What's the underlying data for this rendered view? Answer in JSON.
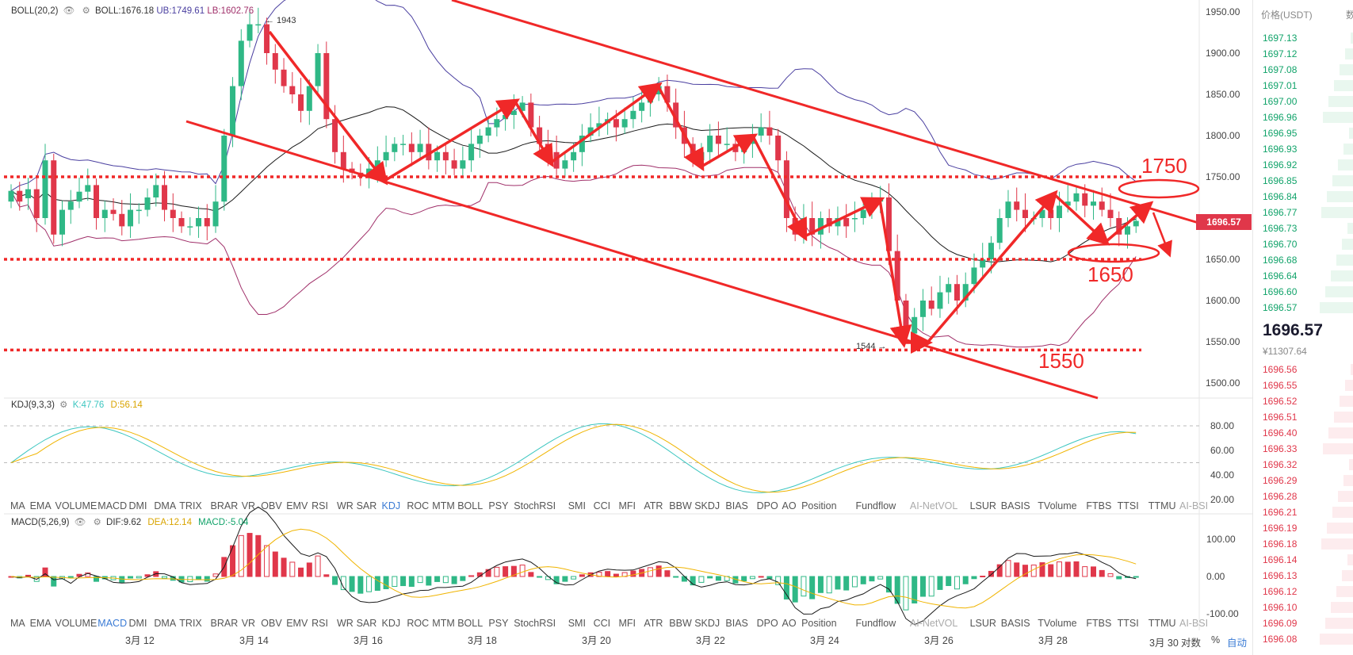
{
  "chart_data": {
    "type": "candlestick",
    "x_ticks": [
      "3月 12",
      "3月 14",
      "3月 16",
      "3月 18",
      "3月 20",
      "3月 22",
      "3月 24",
      "3月 26",
      "3月 28",
      "3月 30"
    ],
    "y_ticks": [
      "1950.00",
      "1900.00",
      "1850.00",
      "1800.00",
      "1750.00",
      "1700.00",
      "1650.00",
      "1600.00",
      "1550.00",
      "1500.00"
    ],
    "ylim": [
      1480,
      1960
    ],
    "last_price": "1696.57",
    "high_marker": "← 1943",
    "low_marker": "1544 →",
    "candles": [
      [
        1720,
        1733
      ],
      [
        1733,
        1720
      ],
      [
        1724,
        1735
      ],
      [
        1735,
        1700
      ],
      [
        1700,
        1770
      ],
      [
        1770,
        1680
      ],
      [
        1680,
        1710
      ],
      [
        1710,
        1720
      ],
      [
        1720,
        1732
      ],
      [
        1732,
        1740
      ],
      [
        1740,
        1700
      ],
      [
        1700,
        1710
      ],
      [
        1710,
        1705
      ],
      [
        1705,
        1690
      ],
      [
        1690,
        1710
      ],
      [
        1710,
        1710
      ],
      [
        1710,
        1725
      ],
      [
        1725,
        1740
      ],
      [
        1740,
        1710
      ],
      [
        1710,
        1700
      ],
      [
        1700,
        1690
      ],
      [
        1690,
        1690
      ],
      [
        1690,
        1700
      ],
      [
        1700,
        1690
      ],
      [
        1690,
        1720
      ],
      [
        1720,
        1800
      ],
      [
        1800,
        1860
      ],
      [
        1860,
        1915
      ],
      [
        1915,
        1935
      ],
      [
        1935,
        1935
      ],
      [
        1935,
        1900
      ],
      [
        1900,
        1880
      ],
      [
        1880,
        1860
      ],
      [
        1860,
        1850
      ],
      [
        1850,
        1830
      ],
      [
        1830,
        1860
      ],
      [
        1860,
        1900
      ],
      [
        1900,
        1820
      ],
      [
        1820,
        1780
      ],
      [
        1780,
        1760
      ],
      [
        1760,
        1755
      ],
      [
        1755,
        1750
      ],
      [
        1750,
        1760
      ],
      [
        1760,
        1770
      ],
      [
        1770,
        1780
      ],
      [
        1780,
        1790
      ],
      [
        1790,
        1790
      ],
      [
        1790,
        1780
      ],
      [
        1780,
        1790
      ],
      [
        1790,
        1770
      ],
      [
        1770,
        1780
      ],
      [
        1780,
        1770
      ],
      [
        1770,
        1760
      ],
      [
        1760,
        1770
      ],
      [
        1770,
        1790
      ],
      [
        1790,
        1800
      ],
      [
        1800,
        1810
      ],
      [
        1810,
        1820
      ],
      [
        1820,
        1825
      ],
      [
        1825,
        1830
      ],
      [
        1830,
        1840
      ],
      [
        1840,
        1810
      ],
      [
        1810,
        1790
      ],
      [
        1790,
        1780
      ],
      [
        1780,
        1760
      ],
      [
        1760,
        1770
      ],
      [
        1770,
        1780
      ],
      [
        1780,
        1800
      ],
      [
        1800,
        1810
      ],
      [
        1810,
        1815
      ],
      [
        1815,
        1820
      ],
      [
        1820,
        1810
      ],
      [
        1810,
        1820
      ],
      [
        1820,
        1830
      ],
      [
        1830,
        1840
      ],
      [
        1840,
        1850
      ],
      [
        1850,
        1860
      ],
      [
        1860,
        1840
      ],
      [
        1840,
        1810
      ],
      [
        1810,
        1790
      ],
      [
        1790,
        1770
      ],
      [
        1770,
        1780
      ],
      [
        1780,
        1800
      ],
      [
        1800,
        1790
      ],
      [
        1790,
        1790
      ],
      [
        1790,
        1780
      ],
      [
        1780,
        1790
      ],
      [
        1790,
        1800
      ],
      [
        1800,
        1810
      ],
      [
        1810,
        1800
      ],
      [
        1800,
        1770
      ],
      [
        1770,
        1700
      ],
      [
        1700,
        1680
      ],
      [
        1680,
        1700
      ],
      [
        1700,
        1680
      ],
      [
        1680,
        1700
      ],
      [
        1700,
        1690
      ],
      [
        1690,
        1700
      ],
      [
        1700,
        1690
      ],
      [
        1700,
        1700
      ],
      [
        1700,
        1710
      ],
      [
        1710,
        1720
      ],
      [
        1720,
        1725
      ],
      [
        1725,
        1660
      ],
      [
        1660,
        1600
      ],
      [
        1600,
        1560
      ],
      [
        1560,
        1580
      ],
      [
        1580,
        1600
      ],
      [
        1600,
        1590
      ],
      [
        1590,
        1610
      ],
      [
        1610,
        1620
      ],
      [
        1620,
        1600
      ],
      [
        1600,
        1620
      ],
      [
        1620,
        1640
      ],
      [
        1640,
        1650
      ],
      [
        1650,
        1670
      ],
      [
        1670,
        1700
      ],
      [
        1700,
        1720
      ],
      [
        1720,
        1710
      ],
      [
        1710,
        1700
      ],
      [
        1700,
        1700
      ],
      [
        1700,
        1710
      ],
      [
        1710,
        1700
      ],
      [
        1700,
        1715
      ],
      [
        1715,
        1720
      ],
      [
        1720,
        1730
      ],
      [
        1730,
        1715
      ],
      [
        1715,
        1720
      ],
      [
        1720,
        1710
      ],
      [
        1710,
        1700
      ],
      [
        1700,
        1680
      ],
      [
        1680,
        1690
      ],
      [
        1690,
        1696.57
      ]
    ],
    "boll_text": {
      "name": "BOLL(20,2)",
      "boll": "BOLL:1676.18",
      "ub": "UB:1749.61",
      "lb": "LB:1602.76"
    },
    "annotations": [
      "1750",
      "1650",
      "1550"
    ],
    "kdj": {
      "name": "KDJ(9,3,3)",
      "k": "K:47.76",
      "d": "D:56.14",
      "ticks": [
        "80.00",
        "60.00",
        "40.00",
        "20.00"
      ]
    },
    "macd": {
      "name": "MACD(5,26,9)",
      "dif": "DIF:9.62",
      "dea": "DEA:12.14",
      "macd": "MACD:-5.04",
      "ticks": [
        "100.00",
        "0.00",
        "-100.00"
      ]
    }
  },
  "indicator_tabs": [
    "MA",
    "EMA",
    "VOLUME",
    "MACD",
    "DMI",
    "DMA",
    "TRIX",
    "BRAR",
    "VR",
    "OBV",
    "EMV",
    "RSI",
    "WR",
    "SAR",
    "KDJ",
    "ROC",
    "MTM",
    "BOLL",
    "PSY",
    "StochRSI",
    "SMI",
    "CCI",
    "MFI",
    "ATR",
    "BBW",
    "SKDJ",
    "BIAS",
    "DPO",
    "AO",
    "Position",
    "Fundflow",
    "AI-NetVOL",
    "LSUR",
    "BASIS",
    "TVolume",
    "FTBS",
    "TTSI",
    "TTMU",
    "AI-BSI"
  ],
  "footer": {
    "log": "对数",
    "percent": "%",
    "auto": "自动"
  },
  "orderbook": {
    "header": "价格(USDT)",
    "header_cut": "数",
    "asks": [
      "1697.13",
      "1697.12",
      "1697.08",
      "1697.01",
      "1697.00",
      "1696.96",
      "1696.95",
      "1696.93",
      "1696.92",
      "1696.85",
      "1696.84",
      "1696.77",
      "1696.73",
      "1696.70",
      "1696.68",
      "1696.64",
      "1696.60",
      "1696.57"
    ],
    "last": "1696.57",
    "last_cny": "¥11307.64",
    "bids": [
      "1696.56",
      "1696.55",
      "1696.52",
      "1696.51",
      "1696.40",
      "1696.33",
      "1696.32",
      "1696.29",
      "1696.28",
      "1696.21",
      "1696.19",
      "1696.18",
      "1696.14",
      "1696.13",
      "1696.12",
      "1696.10",
      "1696.09",
      "1696.08"
    ]
  },
  "colors": {
    "up": "#2fb886",
    "down": "#e0374a",
    "annot": "#f02828",
    "ub": "#4a3fa0",
    "mb": "#1a1a1a",
    "lb": "#a0306a",
    "k": "#3cc6c0",
    "d": "#f0b400"
  }
}
